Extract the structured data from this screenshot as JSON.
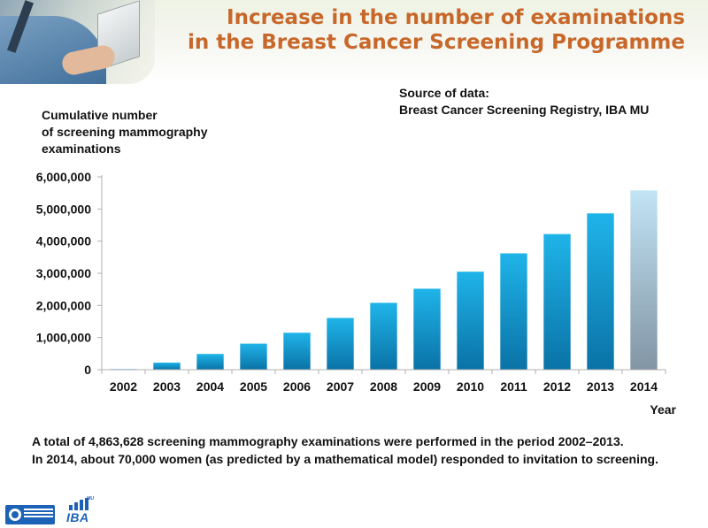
{
  "header": {
    "title_line1": "Increase in the number of examinations",
    "title_line2": "in the Breast Cancer Screening Programme",
    "title_color": "#c8672a"
  },
  "source": {
    "line1": "Source of data:",
    "line2": "Breast Cancer Screening Registry, IBA MU"
  },
  "chart_data": {
    "type": "bar",
    "ylabel_lines": [
      "Cumulative number",
      "of screening mammography",
      "examinations"
    ],
    "xlabel": "Year",
    "categories": [
      "2002",
      "2003",
      "2004",
      "2005",
      "2006",
      "2007",
      "2008",
      "2009",
      "2010",
      "2011",
      "2012",
      "2013",
      "2014"
    ],
    "values": [
      20000,
      220000,
      490000,
      810000,
      1150000,
      1610000,
      2080000,
      2520000,
      3050000,
      3620000,
      4220000,
      4863628,
      5580000
    ],
    "ylim": [
      0,
      6000000
    ],
    "yticks": [
      0,
      1000000,
      2000000,
      3000000,
      4000000,
      5000000,
      6000000
    ],
    "ytick_labels": [
      "0",
      "1,000,000",
      "2,000,000",
      "3,000,000",
      "4,000,000",
      "5,000,000",
      "6,000,000"
    ],
    "grid": false,
    "legend": "none",
    "colors": {
      "bar_top": "#1fb4e9",
      "bar_bottom": "#0a72a6",
      "predicted_top": "#c2e4f5",
      "predicted_bottom": "#8295a5",
      "axis": "#b0b0b0"
    },
    "predicted_categories": [
      "2014"
    ]
  },
  "footnote": {
    "line1": "A total of 4,863,628 screening mammography examinations were performed in the period 2002–2013.",
    "line2": "In 2014, about 70,000 women (as predicted by a mathematical model) responded to invitation to screening."
  },
  "logos": {
    "left": "nrc-logo",
    "right_name": "IBA",
    "right_sup": "MU"
  }
}
